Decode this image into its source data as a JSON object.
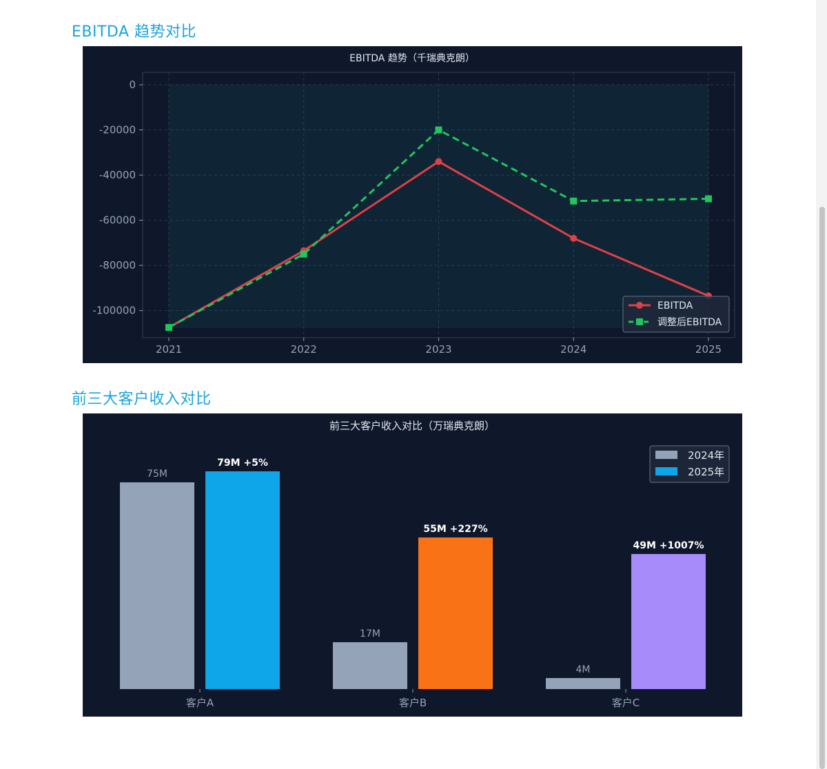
{
  "sections": {
    "ebitda_title": "EBITDA 趋势对比",
    "clients_title": "前三大客户收入对比"
  },
  "colors": {
    "accent": "#1ca3e0",
    "panel_bg": "#0f172a",
    "ebitda_line": "#e04048",
    "adjusted_line": "#22c55e",
    "bar_2024": "#94a3b8",
    "bar_2025_a": "#0ea5e9",
    "bar_2025_b": "#f97316",
    "bar_2025_c": "#a78bfa"
  },
  "chart_data": [
    {
      "type": "line",
      "title": "EBITDA 趋势（千瑞典克朗）",
      "x": [
        "2021",
        "2022",
        "2023",
        "2024",
        "2025"
      ],
      "ylim": [
        -112000,
        5500
      ],
      "yticks": [
        0,
        -20000,
        -40000,
        -60000,
        -80000,
        -100000
      ],
      "ytick_labels": [
        "0",
        "-20000",
        "-40000",
        "-60000",
        "-80000",
        "-100000"
      ],
      "grid": true,
      "legend": "bottom-right",
      "series": [
        {
          "name": "EBITDA",
          "values": [
            -107500,
            -73500,
            -34000,
            -68000,
            -93500
          ],
          "color": "#e04048",
          "marker": "circle",
          "style": "solid"
        },
        {
          "name": "调整后EBITDA",
          "values": [
            -107500,
            -75000,
            -20000,
            -51500,
            -50500
          ],
          "color": "#22c55e",
          "marker": "square",
          "style": "dashed"
        }
      ]
    },
    {
      "type": "bar",
      "title": "前三大客户收入对比（万瑞典克朗）",
      "categories": [
        "客户A",
        "客户B",
        "客户C"
      ],
      "legend": "top-right",
      "series": [
        {
          "name": "2024年",
          "values": [
            75,
            17,
            4
          ],
          "labels": [
            "75M",
            "17M",
            "4M"
          ],
          "color": "#94a3b8"
        },
        {
          "name": "2025年",
          "values": [
            79,
            55,
            49
          ],
          "labels": [
            "79M +5%",
            "55M +227%",
            "49M +1007%"
          ],
          "colors": [
            "#0ea5e9",
            "#f97316",
            "#a78bfa"
          ]
        }
      ]
    }
  ]
}
